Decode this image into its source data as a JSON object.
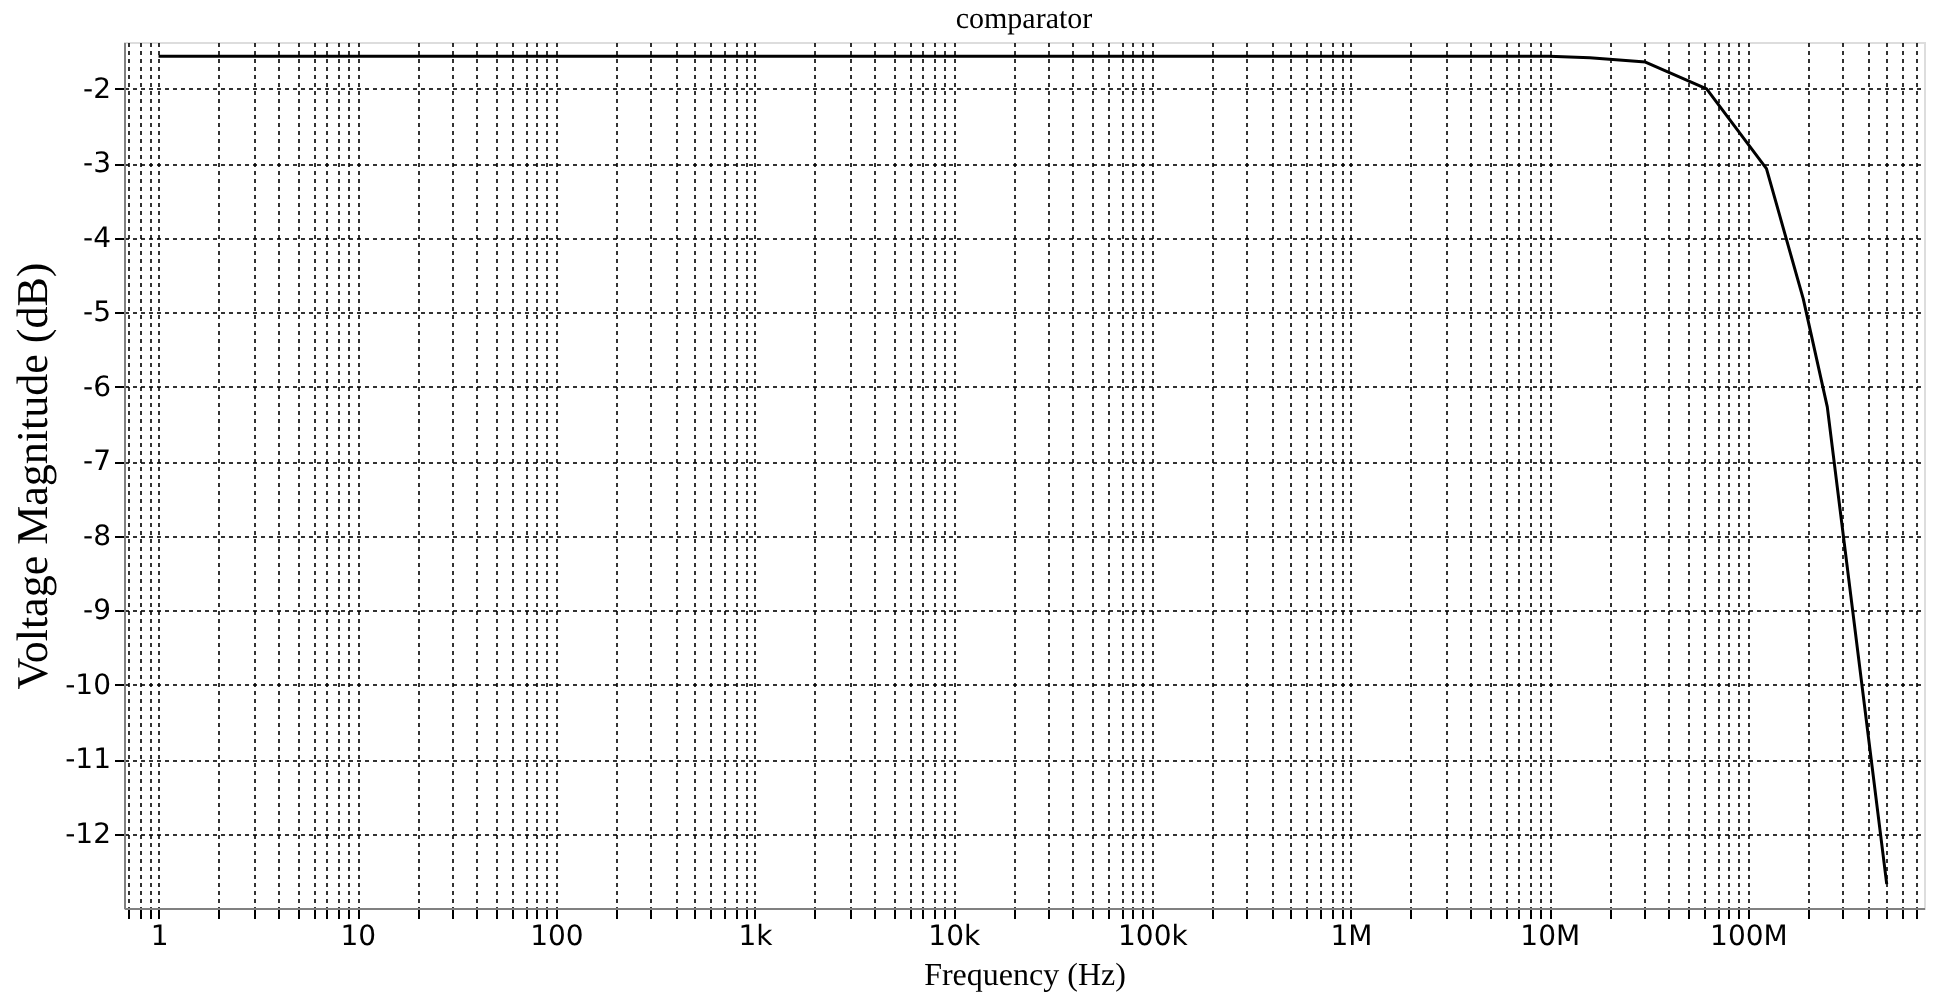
{
  "chart_data": {
    "type": "line",
    "title": "comparator",
    "xlabel": "Frequency (Hz)",
    "ylabel": "Voltage Magnitude (dB)",
    "x": [
      1,
      10000000,
      16000000,
      30500000,
      62000000,
      124000000,
      190000000,
      251000000,
      500000000
    ],
    "series": [
      {
        "color": "#000000",
        "values": [
          -1.56,
          -1.56,
          -1.58,
          -1.64,
          -2.0,
          -3.07,
          -4.82,
          -6.27,
          -12.68
        ]
      }
    ],
    "log": "x",
    "xlim": [
      0.67,
      770000000
    ],
    "ylim": [
      -13,
      -1.37
    ],
    "xticks": [
      {
        "value": 0.7,
        "label": null
      },
      {
        "value": 0.8,
        "label": null
      },
      {
        "value": 0.9,
        "label": null
      },
      {
        "value": 1,
        "label": "1"
      },
      {
        "value": 2,
        "label": null
      },
      {
        "value": 3,
        "label": null
      },
      {
        "value": 4,
        "label": null
      },
      {
        "value": 5,
        "label": null
      },
      {
        "value": 6,
        "label": null
      },
      {
        "value": 7,
        "label": null
      },
      {
        "value": 8,
        "label": null
      },
      {
        "value": 9,
        "label": null
      },
      {
        "value": 10,
        "label": "10"
      },
      {
        "value": 20,
        "label": null
      },
      {
        "value": 30,
        "label": null
      },
      {
        "value": 40,
        "label": null
      },
      {
        "value": 50,
        "label": null
      },
      {
        "value": 60,
        "label": null
      },
      {
        "value": 70,
        "label": null
      },
      {
        "value": 80,
        "label": null
      },
      {
        "value": 90,
        "label": null
      },
      {
        "value": 100,
        "label": "100"
      },
      {
        "value": 200,
        "label": null
      },
      {
        "value": 300,
        "label": null
      },
      {
        "value": 400,
        "label": null
      },
      {
        "value": 500,
        "label": null
      },
      {
        "value": 600,
        "label": null
      },
      {
        "value": 700,
        "label": null
      },
      {
        "value": 800,
        "label": null
      },
      {
        "value": 900,
        "label": null
      },
      {
        "value": 1000,
        "label": "1k"
      },
      {
        "value": 2000,
        "label": null
      },
      {
        "value": 3000,
        "label": null
      },
      {
        "value": 4000,
        "label": null
      },
      {
        "value": 5000,
        "label": null
      },
      {
        "value": 6000,
        "label": null
      },
      {
        "value": 7000,
        "label": null
      },
      {
        "value": 8000,
        "label": null
      },
      {
        "value": 9000,
        "label": null
      },
      {
        "value": 10000,
        "label": "10k"
      },
      {
        "value": 20000,
        "label": null
      },
      {
        "value": 30000,
        "label": null
      },
      {
        "value": 40000,
        "label": null
      },
      {
        "value": 50000,
        "label": null
      },
      {
        "value": 60000,
        "label": null
      },
      {
        "value": 70000,
        "label": null
      },
      {
        "value": 80000,
        "label": null
      },
      {
        "value": 90000,
        "label": null
      },
      {
        "value": 100000,
        "label": "100k"
      },
      {
        "value": 200000,
        "label": null
      },
      {
        "value": 300000,
        "label": null
      },
      {
        "value": 400000,
        "label": null
      },
      {
        "value": 500000,
        "label": null
      },
      {
        "value": 600000,
        "label": null
      },
      {
        "value": 700000,
        "label": null
      },
      {
        "value": 800000,
        "label": null
      },
      {
        "value": 900000,
        "label": null
      },
      {
        "value": 1000000,
        "label": "1M"
      },
      {
        "value": 2000000,
        "label": null
      },
      {
        "value": 3000000,
        "label": null
      },
      {
        "value": 4000000,
        "label": null
      },
      {
        "value": 5000000,
        "label": null
      },
      {
        "value": 6000000,
        "label": null
      },
      {
        "value": 7000000,
        "label": null
      },
      {
        "value": 8000000,
        "label": null
      },
      {
        "value": 9000000,
        "label": null
      },
      {
        "value": 10000000,
        "label": "10M"
      },
      {
        "value": 20000000,
        "label": null
      },
      {
        "value": 30000000,
        "label": null
      },
      {
        "value": 40000000,
        "label": null
      },
      {
        "value": 50000000,
        "label": null
      },
      {
        "value": 60000000,
        "label": null
      },
      {
        "value": 70000000,
        "label": null
      },
      {
        "value": 80000000,
        "label": null
      },
      {
        "value": 90000000,
        "label": null
      },
      {
        "value": 100000000,
        "label": "100M"
      },
      {
        "value": 200000000,
        "label": null
      },
      {
        "value": 300000000,
        "label": null
      },
      {
        "value": 400000000,
        "label": null
      },
      {
        "value": 500000000,
        "label": null
      },
      {
        "value": 600000000,
        "label": null
      },
      {
        "value": 700000000,
        "label": null
      }
    ],
    "yticks": [
      -2,
      -3,
      -4,
      -5,
      -6,
      -7,
      -8,
      -9,
      -10,
      -11,
      -12
    ],
    "grid": true,
    "line_style": "solid",
    "marker": "none"
  }
}
